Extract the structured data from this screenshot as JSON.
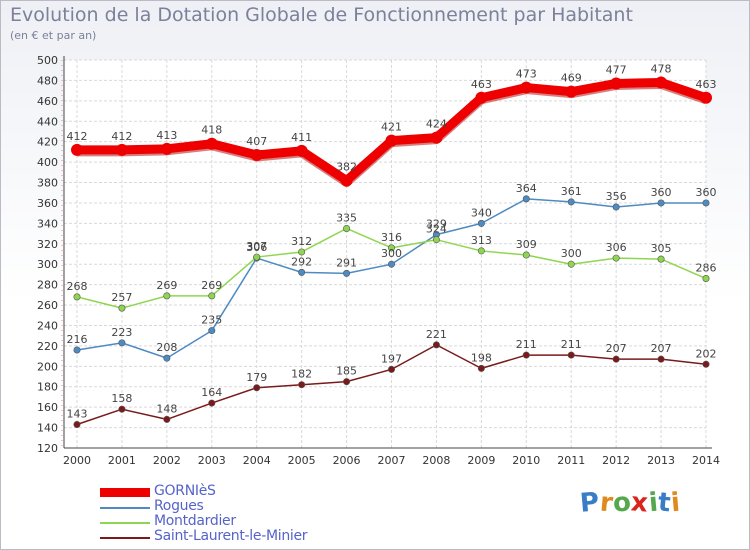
{
  "title": "Evolution de la Dotation Globale de Fonctionnement par Habitant",
  "subtitle": "(en € et par an)",
  "logo": {
    "text": "Proxiti",
    "colors": [
      "#3b7dc4",
      "#e08a1e",
      "#55a84d",
      "#d8261f",
      "#55a84d",
      "#3b7dc4",
      "#e08a1e"
    ]
  },
  "chart_data": {
    "type": "line",
    "x": [
      "2000",
      "2001",
      "2002",
      "2003",
      "2004",
      "2005",
      "2006",
      "2007",
      "2008",
      "2009",
      "2010",
      "2011",
      "2012",
      "2013",
      "2014"
    ],
    "ylim": [
      120,
      500
    ],
    "yticks": [
      120,
      140,
      160,
      180,
      200,
      220,
      240,
      260,
      280,
      300,
      320,
      340,
      360,
      380,
      400,
      420,
      440,
      460,
      480,
      500
    ],
    "grid": true,
    "legend_position": "bottom-left",
    "series": [
      {
        "name": "GORNIèS",
        "color": "#ee0000",
        "values": [
          412,
          412,
          413,
          418,
          407,
          411,
          382,
          421,
          424,
          463,
          473,
          469,
          477,
          478,
          463
        ]
      },
      {
        "name": "Rogues",
        "color": "#4d8bc2",
        "values": [
          216,
          223,
          208,
          235,
          306,
          292,
          291,
          300,
          329,
          340,
          364,
          361,
          356,
          360,
          360
        ]
      },
      {
        "name": "Montdardier",
        "color": "#8fd650",
        "values": [
          268,
          257,
          269,
          269,
          307,
          312,
          335,
          316,
          324,
          313,
          309,
          300,
          306,
          305,
          286
        ]
      },
      {
        "name": "Saint-Laurent-le-Minier",
        "color": "#7a1a1a",
        "values": [
          143,
          158,
          148,
          164,
          179,
          182,
          185,
          197,
          221,
          198,
          211,
          211,
          207,
          207,
          202
        ]
      }
    ]
  }
}
